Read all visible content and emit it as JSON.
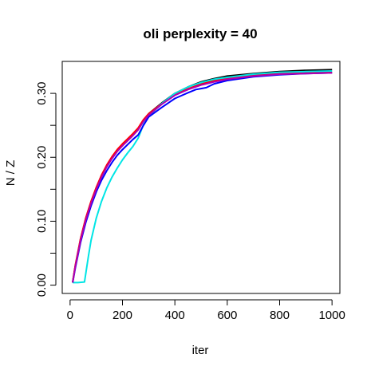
{
  "chart_data": {
    "type": "line",
    "title": "oli perplexity = 40",
    "xlabel": "iter",
    "ylabel": "N / Z",
    "xlim": [
      -30,
      1030
    ],
    "ylim": [
      -0.013,
      0.35
    ],
    "xticks": [
      0,
      200,
      400,
      600,
      800,
      1000
    ],
    "xtick_labels": [
      "0",
      "200",
      "400",
      "600",
      "800",
      "1000"
    ],
    "yticks": [
      0.0,
      0.1,
      0.2,
      0.3
    ],
    "ytick_labels": [
      "0.00",
      "0.10",
      "0.20",
      "0.30"
    ],
    "grid": false,
    "legend": "none",
    "series": [
      {
        "color": "#000000",
        "x": [
          10,
          20,
          40,
          60,
          80,
          100,
          120,
          140,
          160,
          180,
          200,
          220,
          240,
          260,
          280,
          300,
          350,
          400,
          450,
          500,
          550,
          600,
          700,
          800,
          900,
          1000
        ],
        "y": [
          0.005,
          0.03,
          0.072,
          0.104,
          0.13,
          0.152,
          0.171,
          0.187,
          0.2,
          0.211,
          0.22,
          0.228,
          0.236,
          0.245,
          0.258,
          0.268,
          0.285,
          0.3,
          0.31,
          0.318,
          0.323,
          0.327,
          0.331,
          0.334,
          0.336,
          0.337
        ]
      },
      {
        "color": "#ff0000",
        "x": [
          10,
          20,
          40,
          60,
          80,
          100,
          120,
          140,
          160,
          180,
          200,
          220,
          240,
          260,
          280,
          300,
          350,
          400,
          450,
          500,
          550,
          600,
          700,
          800,
          900,
          1000
        ],
        "y": [
          0.005,
          0.031,
          0.073,
          0.105,
          0.131,
          0.153,
          0.172,
          0.188,
          0.201,
          0.212,
          0.221,
          0.229,
          0.237,
          0.246,
          0.259,
          0.268,
          0.284,
          0.298,
          0.307,
          0.315,
          0.32,
          0.324,
          0.329,
          0.331,
          0.333,
          0.333
        ]
      },
      {
        "color": "#00e5e5",
        "x": [
          10,
          30,
          55,
          60,
          70,
          80,
          100,
          120,
          140,
          160,
          180,
          200,
          220,
          240,
          260,
          280,
          300,
          350,
          400,
          450,
          500,
          550,
          600,
          700,
          800,
          900,
          1000
        ],
        "y": [
          0.004,
          0.004,
          0.005,
          0.018,
          0.045,
          0.07,
          0.105,
          0.131,
          0.152,
          0.169,
          0.183,
          0.196,
          0.207,
          0.217,
          0.23,
          0.251,
          0.264,
          0.284,
          0.3,
          0.31,
          0.317,
          0.322,
          0.325,
          0.33,
          0.333,
          0.334,
          0.335
        ]
      },
      {
        "color": "#0000ff",
        "x": [
          10,
          20,
          40,
          60,
          80,
          100,
          120,
          140,
          160,
          180,
          200,
          220,
          240,
          260,
          280,
          300,
          350,
          400,
          450,
          480,
          520,
          550,
          600,
          700,
          800,
          900,
          1000
        ],
        "y": [
          0.004,
          0.027,
          0.067,
          0.098,
          0.124,
          0.146,
          0.164,
          0.179,
          0.192,
          0.203,
          0.212,
          0.22,
          0.228,
          0.235,
          0.25,
          0.263,
          0.278,
          0.292,
          0.301,
          0.306,
          0.309,
          0.315,
          0.32,
          0.326,
          0.329,
          0.331,
          0.332
        ]
      },
      {
        "color": "#b000b0",
        "x": [
          10,
          20,
          40,
          60,
          80,
          100,
          120,
          140,
          160,
          180,
          200,
          220,
          240,
          260,
          280,
          300,
          350,
          400,
          450,
          500,
          550,
          600,
          700,
          800,
          900,
          1000
        ],
        "y": [
          0.004,
          0.029,
          0.07,
          0.102,
          0.128,
          0.15,
          0.169,
          0.185,
          0.198,
          0.209,
          0.218,
          0.226,
          0.234,
          0.243,
          0.256,
          0.266,
          0.283,
          0.297,
          0.306,
          0.313,
          0.318,
          0.322,
          0.327,
          0.33,
          0.331,
          0.332
        ]
      }
    ]
  }
}
